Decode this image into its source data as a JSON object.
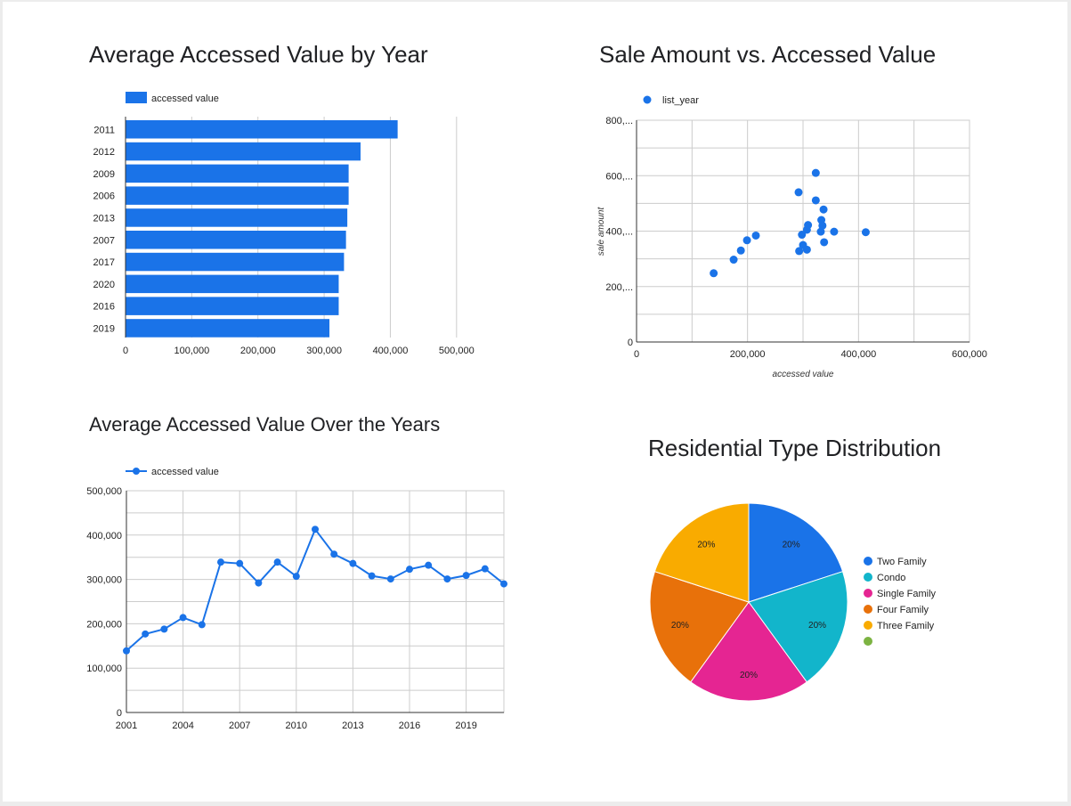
{
  "colors": {
    "primary": "#1a73e8",
    "grid": "#cccccc",
    "axis": "#333333",
    "pie": [
      "#1a73e8",
      "#12b5cb",
      "#e52592",
      "#e8710a",
      "#f9ab00",
      "#7cb342"
    ]
  },
  "chart_data": [
    {
      "id": "bar",
      "type": "bar",
      "orientation": "horizontal",
      "title": "Average Accessed Value by Year",
      "legend": "accessed value",
      "legend_position": "top-left",
      "categories": [
        "2011",
        "2012",
        "2009",
        "2006",
        "2013",
        "2007",
        "2017",
        "2020",
        "2016",
        "2019"
      ],
      "values": [
        411000,
        355000,
        337000,
        337000,
        335000,
        333000,
        330000,
        322000,
        322000,
        308000
      ],
      "xlim": [
        0,
        550000
      ],
      "xticks": [
        0,
        100000,
        200000,
        300000,
        400000,
        500000
      ],
      "xtick_labels": [
        "0",
        "100,000",
        "200,000",
        "300,000",
        "400,000",
        "500,000"
      ],
      "grid": true
    },
    {
      "id": "scatter",
      "type": "scatter",
      "title": "Sale Amount vs. Accessed Value",
      "legend": "list_year",
      "legend_position": "top-left",
      "xlabel": "accessed value",
      "ylabel": "sale amount",
      "xlim": [
        0,
        600000
      ],
      "ylim": [
        0,
        800000
      ],
      "xticks": [
        0,
        200000,
        400000,
        600000
      ],
      "xtick_labels": [
        "0",
        "200,000",
        "400,000",
        "600,000"
      ],
      "yticks": [
        0,
        200000,
        400000,
        600000,
        800000
      ],
      "ytick_labels": [
        "0",
        "200,...",
        "400,...",
        "600,...",
        "800,..."
      ],
      "points": [
        [
          139000,
          248000
        ],
        [
          175000,
          297000
        ],
        [
          188000,
          330000
        ],
        [
          199000,
          367000
        ],
        [
          215000,
          384000
        ],
        [
          292000,
          540000
        ],
        [
          293000,
          328000
        ],
        [
          298000,
          387000
        ],
        [
          300000,
          350000
        ],
        [
          307000,
          333000
        ],
        [
          307000,
          405000
        ],
        [
          309000,
          422000
        ],
        [
          323000,
          610000
        ],
        [
          323000,
          511000
        ],
        [
          332000,
          398000
        ],
        [
          333000,
          440000
        ],
        [
          335000,
          420000
        ],
        [
          337000,
          478000
        ],
        [
          338000,
          360000
        ],
        [
          356000,
          398000
        ],
        [
          413000,
          396000
        ]
      ],
      "grid": true
    },
    {
      "id": "line",
      "type": "line",
      "title": "Average Accessed Value Over the Years",
      "legend": "accessed value",
      "legend_position": "top-left",
      "x": [
        2001,
        2002,
        2003,
        2004,
        2005,
        2006,
        2007,
        2008,
        2009,
        2010,
        2011,
        2012,
        2013,
        2014,
        2015,
        2016,
        2017,
        2018,
        2019,
        2020,
        2021
      ],
      "values": [
        139000,
        177000,
        188000,
        214000,
        198000,
        339000,
        336000,
        292000,
        339000,
        307000,
        413000,
        357000,
        336000,
        308000,
        301000,
        323000,
        332000,
        301000,
        309000,
        324000,
        290000
      ],
      "xlim": [
        2001,
        2021
      ],
      "ylim": [
        0,
        500000
      ],
      "xticks": [
        2001,
        2004,
        2007,
        2010,
        2013,
        2016,
        2019
      ],
      "xtick_labels": [
        "2001",
        "2004",
        "2007",
        "2010",
        "2013",
        "2016",
        "2019"
      ],
      "yticks": [
        0,
        100000,
        200000,
        300000,
        400000,
        500000
      ],
      "ytick_labels": [
        "0",
        "100,000",
        "200,000",
        "300,000",
        "400,000",
        "500,000"
      ],
      "grid": true
    },
    {
      "id": "pie",
      "type": "pie",
      "title": "Residential Type Distribution",
      "legend_position": "right",
      "labels": [
        "Two Family",
        "Condo",
        "Single Family",
        "Four Family",
        "Three Family",
        ""
      ],
      "values": [
        20,
        20,
        20,
        20,
        20,
        0
      ],
      "slice_labels": [
        "20%",
        "20%",
        "20%",
        "20%",
        "20%",
        ""
      ]
    }
  ]
}
